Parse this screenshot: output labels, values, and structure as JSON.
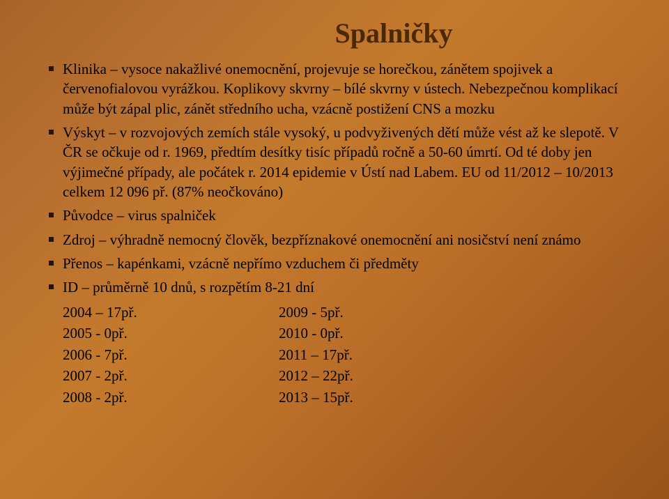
{
  "title": "Spalničky",
  "bullets": [
    "Klinika – vysoce nakažlivé onemocnění, projevuje se horečkou, zánětem spojivek a červenofialovou vyrážkou. Koplikovy skvrny – bílé skvrny v ústech. Nebezpečnou komplikací může být zápal plic, zánět středního ucha, vzácně postižení CNS a mozku",
    "Výskyt – v rozvojových zemích stále vysoký, u podvyživených dětí může vést až ke slepotě. V ČR se očkuje od r. 1969, předtím desítky tisíc případů ročně a 50-60 úmrtí. Od té doby jen výjimečné případy, ale počátek r. 2014 epidemie v Ústí nad Labem. EU od 11/2012 – 10/2013 celkem 12 096 př. (87% neočkováno)",
    "Původce – virus spalniček",
    "Zdroj – výhradně nemocný člověk, bezpříznakové onemocnění ani nosičství není známo",
    "Přenos – kapénkami, vzácně nepřímo vzduchem či předměty",
    "ID – průměrně 10 dnů, s rozpětím 8-21 dní"
  ],
  "yearsLeft": [
    "2004 – 17př.",
    "2005 -   0př.",
    "2006 -   7př.",
    "2007 -   2př.",
    "2008 -   2př."
  ],
  "yearsRight": [
    "2009 -   5př.",
    "2010 -   0př.",
    "2011 – 17př.",
    "2012 – 22př.",
    "2013 – 15př."
  ],
  "colors": {
    "title": "#4a2808",
    "text": "#000000",
    "background_start": "#a86428",
    "background_end": "#9a5418"
  },
  "typography": {
    "title_fontsize": 40,
    "body_fontsize": 21,
    "font_family": "serif"
  }
}
